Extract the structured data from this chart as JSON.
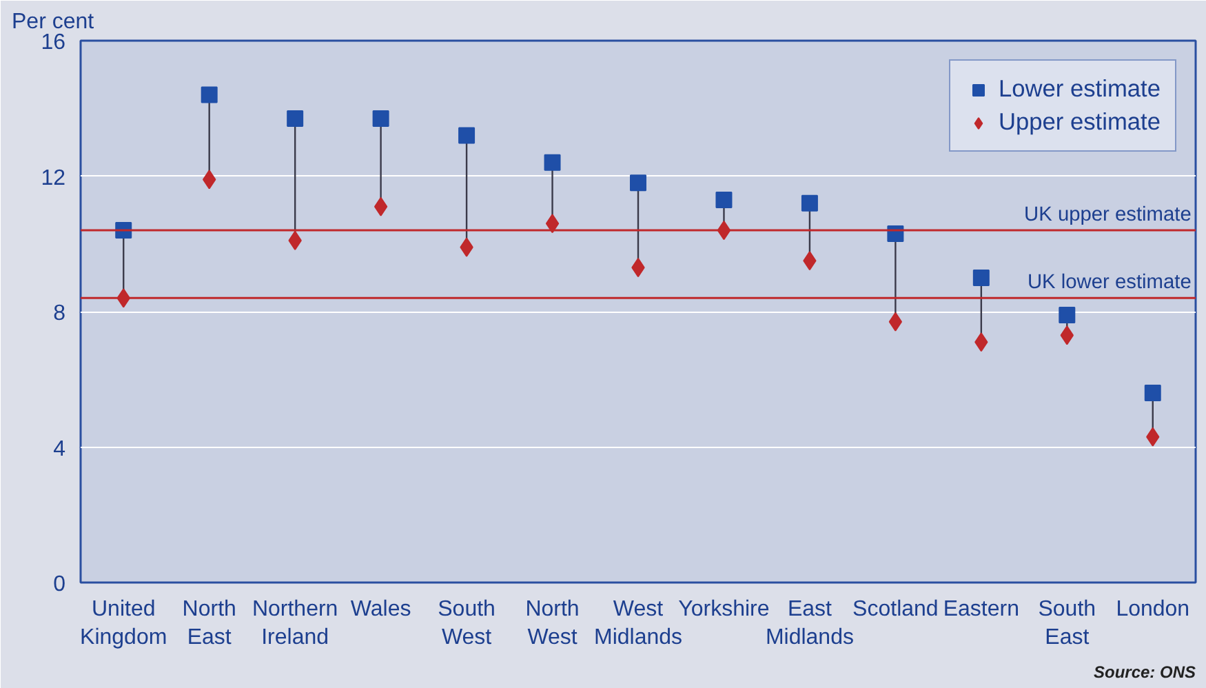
{
  "chart_data": {
    "type": "scatter",
    "ylabel": "Per cent",
    "categories": [
      "United Kingdom",
      "North East",
      "Northern Ireland",
      "Wales",
      "South West",
      "North West",
      "West Midlands",
      "Yorkshire",
      "East Midlands",
      "Scotland",
      "Eastern",
      "South East",
      "London"
    ],
    "series": [
      {
        "name": "Lower estimate",
        "color": "#1f4fa8",
        "marker": "square",
        "values": [
          10.4,
          14.4,
          13.7,
          13.7,
          13.2,
          12.4,
          11.8,
          11.3,
          11.2,
          10.3,
          9.0,
          7.9,
          5.6
        ]
      },
      {
        "name": "Upper estimate",
        "color": "#c0282b",
        "marker": "diamond",
        "values": [
          8.4,
          11.9,
          10.1,
          11.1,
          9.9,
          10.6,
          9.3,
          10.4,
          9.5,
          7.7,
          7.1,
          7.3,
          4.3
        ]
      }
    ],
    "ylim": [
      0,
      16
    ],
    "yticks": [
      0,
      4,
      8,
      12,
      16
    ],
    "grid": "y",
    "legend": "top right",
    "ref_lines": [
      {
        "axis": "y",
        "value": 10.4,
        "label": "UK upper estimate",
        "color": "#c0282b"
      },
      {
        "axis": "y",
        "value": 8.4,
        "label": "UK lower estimate",
        "color": "#c0282b"
      }
    ],
    "annotations": [
      "Source: ONS"
    ]
  }
}
